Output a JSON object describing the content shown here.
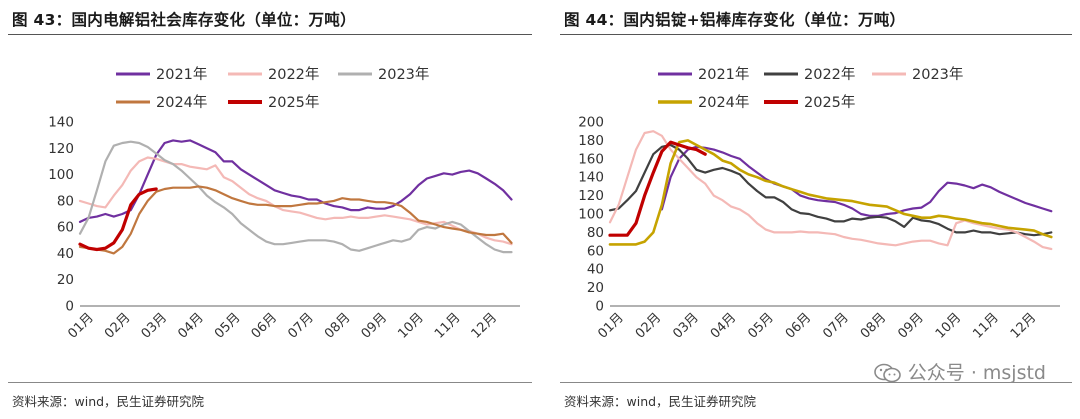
{
  "panels": [
    {
      "title": "图 43：国内电解铝社会库存变化（单位：万吨）",
      "source": "资料来源：wind，民生证券研究院"
    },
    {
      "title": "图 44：国内铝锭+铝棒库存变化（单位：万吨）",
      "source": "资料来源：wind，民生证券研究院"
    }
  ],
  "watermark": {
    "text": "公众号 · msjstd",
    "icon": "wechat-icon"
  },
  "chart_data": [
    {
      "type": "line",
      "title": "图 43：国内电解铝社会库存变化（单位：万吨）",
      "xlabel": "",
      "ylabel": "万吨",
      "ylim": [
        0,
        140
      ],
      "yticks": [
        0,
        20,
        40,
        60,
        80,
        100,
        120,
        140
      ],
      "categories": [
        "01月",
        "02月",
        "03月",
        "04月",
        "05月",
        "06月",
        "07月",
        "08月",
        "09月",
        "10月",
        "11月",
        "12月"
      ],
      "x_range": [
        0,
        52
      ],
      "grid": false,
      "legend": "top",
      "series": [
        {
          "name": "2021年",
          "color": "#7030a0",
          "width": 2.2,
          "x": [
            0,
            1,
            2,
            3,
            4,
            5,
            6,
            7,
            8,
            9,
            10,
            11,
            12,
            13,
            14,
            15,
            16,
            17,
            18,
            19,
            20,
            21,
            22,
            23,
            24,
            25,
            26,
            27,
            28,
            29,
            30,
            31,
            32,
            33,
            34,
            35,
            36,
            37,
            38,
            39,
            40,
            41,
            42,
            43,
            44,
            45,
            46,
            47,
            48,
            49,
            50,
            51
          ],
          "values": [
            64,
            67,
            68,
            70,
            68,
            70,
            73,
            85,
            100,
            115,
            124,
            126,
            125,
            126,
            123,
            120,
            117,
            110,
            110,
            104,
            100,
            96,
            92,
            88,
            86,
            84,
            83,
            81,
            81,
            78,
            76,
            75,
            73,
            73,
            75,
            74,
            74,
            76,
            80,
            85,
            92,
            97,
            99,
            101,
            100,
            102,
            103,
            101,
            97,
            93,
            88,
            81
          ]
        },
        {
          "name": "2022年",
          "color": "#f4b9b6",
          "width": 2.2,
          "x": [
            0,
            1,
            2,
            3,
            4,
            5,
            6,
            7,
            8,
            9,
            10,
            11,
            12,
            13,
            14,
            15,
            16,
            17,
            18,
            19,
            20,
            21,
            22,
            23,
            24,
            25,
            26,
            27,
            28,
            29,
            30,
            31,
            32,
            33,
            34,
            35,
            36,
            37,
            38,
            39,
            40,
            41,
            42,
            43,
            44,
            45,
            46,
            47,
            48,
            49,
            50,
            51
          ],
          "values": [
            80,
            78,
            76,
            75,
            84,
            92,
            103,
            110,
            113,
            112,
            110,
            108,
            108,
            106,
            105,
            104,
            107,
            98,
            95,
            90,
            85,
            82,
            80,
            76,
            73,
            72,
            71,
            69,
            67,
            66,
            67,
            67,
            68,
            67,
            67,
            68,
            69,
            68,
            67,
            66,
            64,
            62,
            63,
            64,
            61,
            58,
            57,
            55,
            52,
            50,
            49,
            47
          ]
        },
        {
          "name": "2023年",
          "color": "#b0b0b0",
          "width": 2.2,
          "x": [
            0,
            1,
            2,
            3,
            4,
            5,
            6,
            7,
            8,
            9,
            10,
            11,
            12,
            13,
            14,
            15,
            16,
            17,
            18,
            19,
            20,
            21,
            22,
            23,
            24,
            25,
            26,
            27,
            28,
            29,
            30,
            31,
            32,
            33,
            34,
            35,
            36,
            37,
            38,
            39,
            40,
            41,
            42,
            43,
            44,
            45,
            46,
            47,
            48,
            49,
            50,
            51
          ],
          "values": [
            55,
            67,
            88,
            110,
            122,
            124,
            125,
            124,
            121,
            116,
            111,
            108,
            103,
            97,
            91,
            84,
            79,
            75,
            70,
            63,
            58,
            53,
            49,
            47,
            47,
            48,
            49,
            50,
            50,
            50,
            49,
            47,
            43,
            42,
            44,
            46,
            48,
            50,
            49,
            51,
            58,
            60,
            59,
            62,
            64,
            62,
            57,
            52,
            47,
            43,
            41,
            41
          ]
        },
        {
          "name": "2024年",
          "color": "#c0773f",
          "width": 2.2,
          "x": [
            0,
            1,
            2,
            3,
            4,
            5,
            6,
            7,
            8,
            9,
            10,
            11,
            12,
            13,
            14,
            15,
            16,
            17,
            18,
            19,
            20,
            21,
            22,
            23,
            24,
            25,
            26,
            27,
            28,
            29,
            30,
            31,
            32,
            33,
            34,
            35,
            36,
            37,
            38,
            39,
            40,
            41,
            42,
            43,
            44,
            45,
            46,
            47,
            48,
            49,
            50,
            51
          ],
          "values": [
            45,
            44,
            43,
            42,
            40,
            45,
            55,
            70,
            80,
            87,
            89,
            90,
            90,
            90,
            91,
            90,
            88,
            85,
            82,
            80,
            78,
            77,
            77,
            76,
            76,
            76,
            77,
            78,
            78,
            79,
            80,
            82,
            81,
            81,
            80,
            79,
            79,
            78,
            76,
            71,
            65,
            64,
            62,
            60,
            59,
            58,
            56,
            55,
            54,
            54,
            55,
            48
          ]
        },
        {
          "name": "2025年",
          "color": "#c00000",
          "width": 3.2,
          "x": [
            0,
            1,
            2,
            3,
            4,
            5,
            6,
            7,
            8,
            9
          ],
          "values": [
            47,
            44,
            43,
            44,
            48,
            58,
            77,
            85,
            88,
            89
          ]
        }
      ]
    },
    {
      "type": "line",
      "title": "图 44：国内铝锭+铝棒库存变化（单位：万吨）",
      "xlabel": "",
      "ylabel": "万吨",
      "ylim": [
        0,
        200
      ],
      "yticks": [
        0,
        20,
        40,
        60,
        80,
        100,
        120,
        140,
        160,
        180,
        200
      ],
      "categories": [
        "01月",
        "02月",
        "03月",
        "04月",
        "05月",
        "06月",
        "07月",
        "08月",
        "09月",
        "10月",
        "11月",
        "12月"
      ],
      "x_range": [
        0,
        52
      ],
      "grid": false,
      "legend": "top",
      "series": [
        {
          "name": "2021年",
          "color": "#7030a0",
          "width": 2.2,
          "x": [
            6,
            7,
            8,
            9,
            10,
            11,
            12,
            13,
            14,
            15,
            16,
            17,
            18,
            19,
            20,
            21,
            22,
            23,
            24,
            25,
            26,
            27,
            28,
            29,
            30,
            31,
            32,
            33,
            34,
            35,
            36,
            37,
            38,
            39,
            40,
            41,
            42,
            43,
            44,
            45,
            46,
            47,
            48,
            49,
            50,
            51
          ],
          "values": [
            105,
            140,
            160,
            170,
            173,
            172,
            170,
            167,
            163,
            160,
            152,
            145,
            138,
            133,
            130,
            127,
            120,
            117,
            115,
            114,
            113,
            110,
            106,
            100,
            98,
            98,
            100,
            101,
            104,
            106,
            107,
            113,
            125,
            134,
            133,
            131,
            128,
            132,
            129,
            124,
            120,
            116,
            112,
            109,
            106,
            103
          ]
        },
        {
          "name": "2022年",
          "color": "#404040",
          "width": 2.2,
          "x": [
            0,
            1,
            2,
            3,
            4,
            5,
            6,
            7,
            8,
            9,
            10,
            11,
            12,
            13,
            14,
            15,
            16,
            17,
            18,
            19,
            20,
            21,
            22,
            23,
            24,
            25,
            26,
            27,
            28,
            29,
            30,
            31,
            32,
            33,
            34,
            35,
            36,
            37,
            38,
            39,
            40,
            41,
            42,
            43,
            44,
            45,
            46,
            47,
            48,
            49,
            50,
            51
          ],
          "values": [
            104,
            106,
            115,
            125,
            145,
            165,
            173,
            175,
            170,
            160,
            148,
            145,
            148,
            150,
            147,
            143,
            133,
            125,
            118,
            118,
            113,
            105,
            101,
            100,
            97,
            95,
            92,
            92,
            95,
            94,
            96,
            97,
            96,
            92,
            86,
            96,
            93,
            92,
            89,
            84,
            80,
            80,
            82,
            80,
            80,
            78,
            79,
            80,
            78,
            77,
            78,
            80
          ]
        },
        {
          "name": "2023年",
          "color": "#f4b9b6",
          "width": 2.2,
          "x": [
            0,
            1,
            2,
            3,
            4,
            5,
            6,
            7,
            8,
            9,
            10,
            11,
            12,
            13,
            14,
            15,
            16,
            17,
            18,
            19,
            20,
            21,
            22,
            23,
            24,
            25,
            26,
            27,
            28,
            29,
            30,
            31,
            32,
            33,
            34,
            35,
            36,
            37,
            38,
            39,
            40,
            41,
            42,
            43,
            44,
            45,
            46,
            47,
            48,
            49,
            50,
            51
          ],
          "values": [
            91,
            110,
            140,
            170,
            188,
            190,
            185,
            170,
            160,
            150,
            140,
            133,
            120,
            115,
            108,
            105,
            99,
            90,
            83,
            80,
            80,
            80,
            81,
            80,
            80,
            79,
            78,
            75,
            73,
            72,
            70,
            68,
            67,
            66,
            68,
            70,
            71,
            71,
            68,
            66,
            90,
            93,
            90,
            88,
            86,
            84,
            83,
            80,
            75,
            70,
            64,
            62
          ]
        },
        {
          "name": "2024年",
          "color": "#c6a300",
          "width": 2.6,
          "x": [
            0,
            1,
            2,
            3,
            4,
            5,
            6,
            7,
            8,
            9,
            10,
            11,
            12,
            13,
            14,
            15,
            16,
            17,
            18,
            19,
            20,
            21,
            22,
            23,
            24,
            25,
            26,
            27,
            28,
            29,
            30,
            31,
            32,
            33,
            34,
            35,
            36,
            37,
            38,
            39,
            40,
            41,
            42,
            43,
            44,
            45,
            46,
            47,
            48,
            49,
            50,
            51
          ],
          "values": [
            67,
            67,
            67,
            67,
            70,
            80,
            110,
            155,
            178,
            180,
            175,
            170,
            165,
            158,
            155,
            148,
            143,
            140,
            136,
            134,
            130,
            127,
            124,
            121,
            119,
            117,
            116,
            115,
            114,
            112,
            110,
            109,
            108,
            104,
            100,
            98,
            96,
            96,
            98,
            97,
            95,
            94,
            92,
            90,
            89,
            87,
            85,
            84,
            83,
            82,
            78,
            75
          ]
        },
        {
          "name": "2025年",
          "color": "#c00000",
          "width": 3.2,
          "x": [
            0,
            1,
            2,
            3,
            4,
            5,
            6,
            7,
            8,
            9,
            10,
            11
          ],
          "values": [
            77,
            77,
            77,
            90,
            120,
            145,
            168,
            178,
            175,
            172,
            170,
            165
          ]
        }
      ]
    }
  ]
}
